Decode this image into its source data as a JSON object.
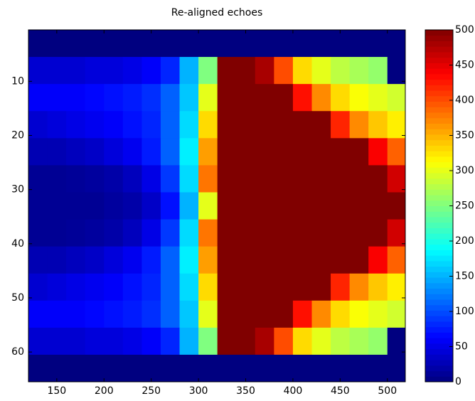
{
  "chart_data": {
    "type": "heatmap",
    "title": "Re-aligned echoes",
    "colormap": "jet",
    "clim": [
      0,
      500
    ],
    "x": [
      130,
      150,
      170,
      190,
      210,
      230,
      250,
      270,
      290,
      310,
      330,
      350,
      370,
      390,
      410,
      430,
      450,
      470,
      490,
      510
    ],
    "y": [
      3,
      8,
      13,
      18,
      23,
      28,
      33,
      38,
      43,
      48,
      53,
      58,
      63
    ],
    "z": [
      [
        0,
        0,
        0,
        0,
        0,
        0,
        0,
        0,
        0,
        0,
        0,
        0,
        0,
        0,
        0,
        0,
        0,
        0,
        0,
        0
      ],
      [
        40,
        40,
        40,
        45,
        45,
        50,
        60,
        80,
        150,
        250,
        500,
        500,
        480,
        400,
        330,
        300,
        280,
        270,
        260,
        0
      ],
      [
        60,
        60,
        60,
        65,
        70,
        75,
        85,
        110,
        160,
        300,
        500,
        500,
        500,
        500,
        430,
        370,
        330,
        310,
        300,
        290
      ],
      [
        40,
        45,
        50,
        55,
        60,
        70,
        80,
        110,
        170,
        330,
        500,
        500,
        500,
        500,
        500,
        500,
        420,
        370,
        340,
        320
      ],
      [
        25,
        25,
        30,
        35,
        45,
        55,
        75,
        110,
        180,
        360,
        500,
        500,
        500,
        500,
        500,
        500,
        500,
        500,
        440,
        390
      ],
      [
        10,
        10,
        12,
        15,
        20,
        30,
        50,
        90,
        170,
        380,
        500,
        500,
        500,
        500,
        500,
        500,
        500,
        500,
        500,
        460
      ],
      [
        10,
        10,
        10,
        10,
        15,
        20,
        35,
        70,
        150,
        300,
        500,
        500,
        500,
        500,
        500,
        500,
        500,
        500,
        500,
        500
      ],
      [
        10,
        10,
        12,
        15,
        20,
        30,
        50,
        90,
        170,
        380,
        500,
        500,
        500,
        500,
        500,
        500,
        500,
        500,
        500,
        460
      ],
      [
        25,
        25,
        30,
        35,
        45,
        55,
        75,
        110,
        180,
        360,
        500,
        500,
        500,
        500,
        500,
        500,
        500,
        500,
        440,
        390
      ],
      [
        40,
        45,
        50,
        55,
        60,
        70,
        80,
        110,
        170,
        330,
        500,
        500,
        500,
        500,
        500,
        500,
        420,
        370,
        340,
        320
      ],
      [
        60,
        60,
        60,
        65,
        70,
        75,
        85,
        110,
        160,
        300,
        500,
        500,
        500,
        500,
        430,
        370,
        330,
        310,
        300,
        290
      ],
      [
        40,
        40,
        40,
        45,
        45,
        50,
        60,
        80,
        150,
        250,
        500,
        500,
        480,
        400,
        330,
        300,
        280,
        270,
        260,
        0
      ],
      [
        0,
        0,
        0,
        0,
        0,
        0,
        0,
        0,
        0,
        0,
        0,
        0,
        0,
        0,
        0,
        0,
        0,
        0,
        0,
        0
      ]
    ],
    "xlim": [
      120,
      519
    ],
    "ylim": [
      65.5,
      0.5
    ],
    "xticks": [
      150,
      200,
      250,
      300,
      350,
      400,
      450,
      500
    ],
    "yticks": [
      10,
      20,
      30,
      40,
      50,
      60
    ],
    "cbar_ticks": [
      0,
      50,
      100,
      150,
      200,
      250,
      300,
      350,
      400,
      450,
      500
    ]
  }
}
